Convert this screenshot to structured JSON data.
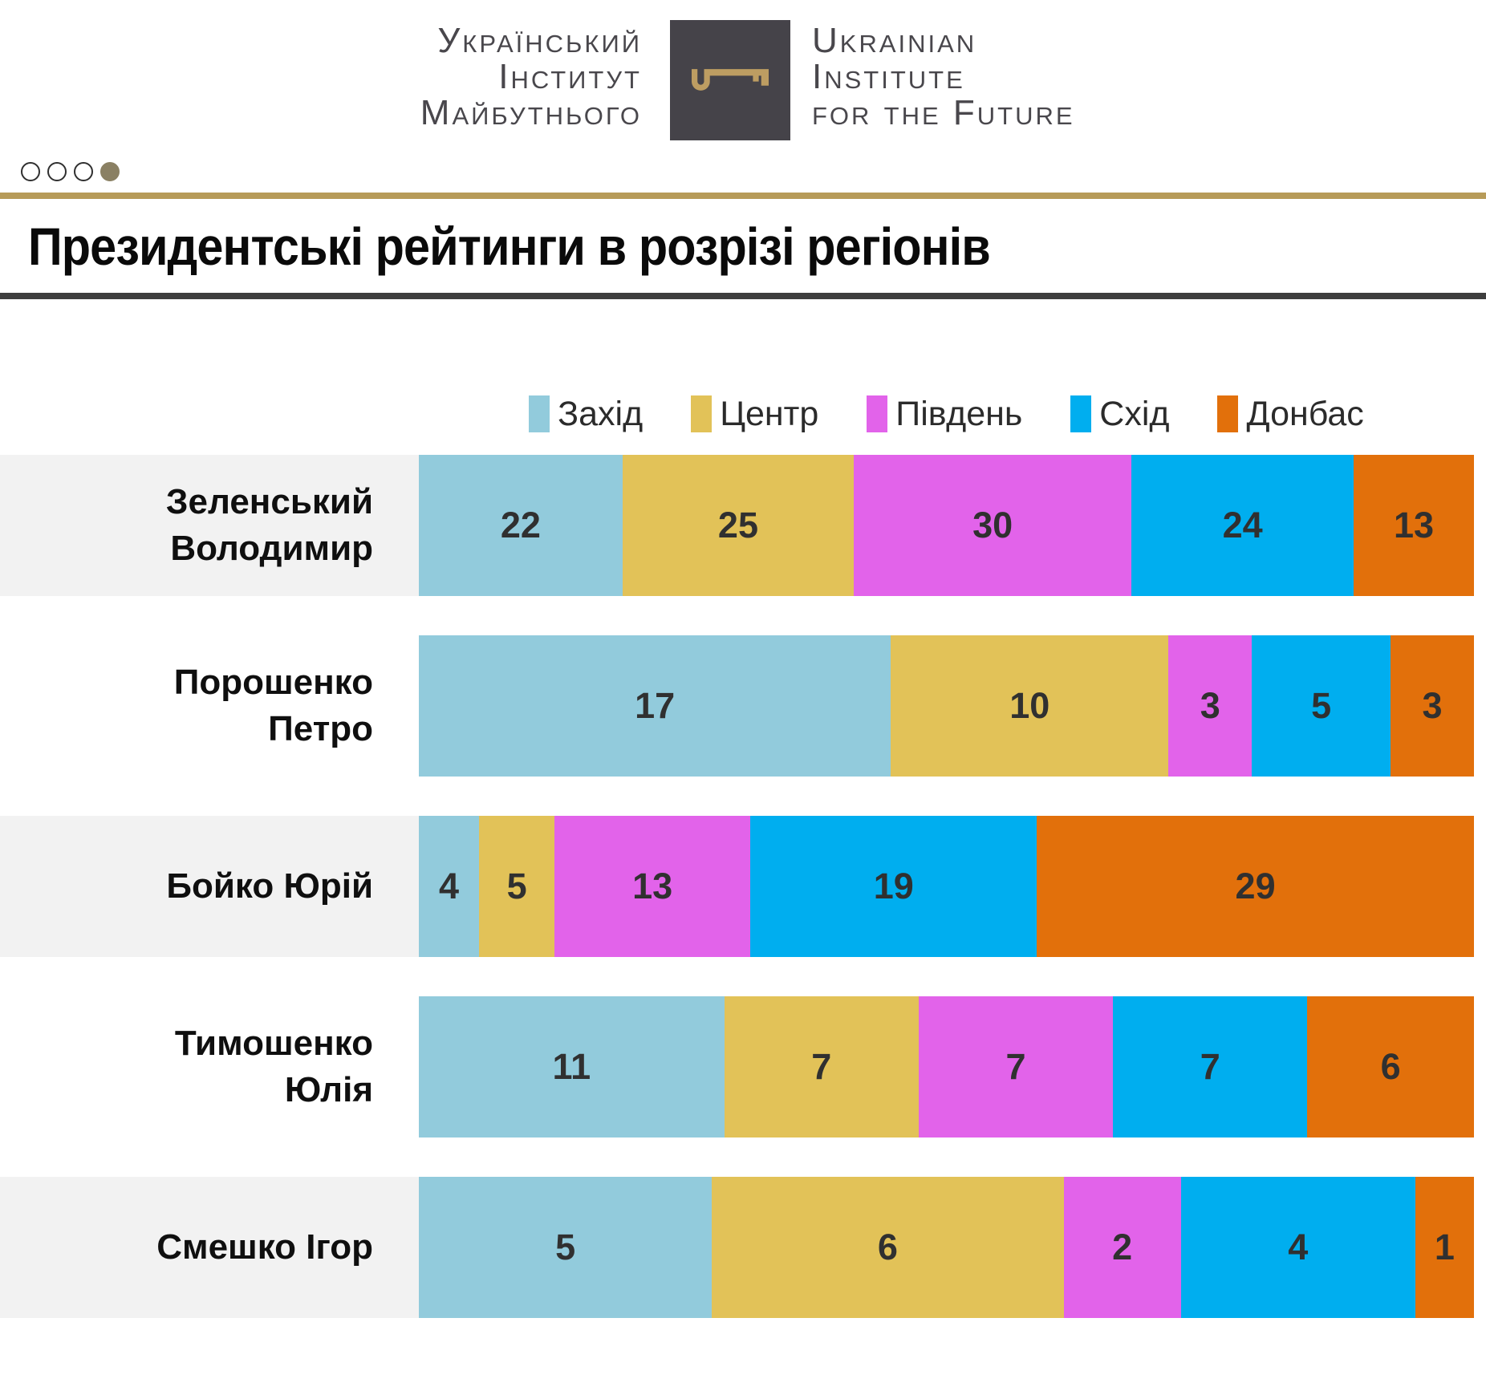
{
  "header": {
    "logo_ua": "Український\nІнститут\nМайбутнього",
    "logo_en": "Ukrainian\nInstitute\nfor the Future",
    "dots": {
      "count": 4,
      "active_index": 3
    }
  },
  "title": "Президентські рейтинги в розрізі регіонів",
  "colors": {
    "accent_gold_line": "#B79B59",
    "logo_box_bg": "#454349",
    "logo_key_gold": "#BD9D62",
    "logo_text": "#49474C",
    "title_text": "#0A0A0A",
    "dark_divider": "#3E3E3E",
    "row_band_gray": "#F2F2F2",
    "active_dot": "#8A8063",
    "value_text": "#303030"
  },
  "chart_data": {
    "type": "bar",
    "variant": "horizontal-stacked-normalized",
    "legend_position": "top",
    "value_labels": "inside",
    "axis": "none",
    "categories": [
      "Зеленський Володимир",
      "Порошенко Петро",
      "Бойко Юрій",
      "Тимошенко Юлія",
      "Смешко Ігор"
    ],
    "category_label_lines": [
      "Зеленський\nВолодимир",
      "Порошенко\nПетро",
      "Бойко Юрій",
      "Тимошенко\nЮлія",
      "Смешко Ігор"
    ],
    "series": [
      {
        "name": "Захід",
        "color": "#92CBDC",
        "values": [
          22,
          17,
          4,
          11,
          5
        ]
      },
      {
        "name": "Центр",
        "color": "#E2C258",
        "values": [
          25,
          10,
          5,
          7,
          6
        ]
      },
      {
        "name": "Південь",
        "color": "#E263EA",
        "values": [
          30,
          3,
          13,
          7,
          2
        ]
      },
      {
        "name": "Схід",
        "color": "#00AEEF",
        "values": [
          24,
          5,
          19,
          7,
          4
        ]
      },
      {
        "name": "Донбас",
        "color": "#E2700B",
        "values": [
          13,
          3,
          29,
          6,
          1
        ]
      }
    ]
  }
}
